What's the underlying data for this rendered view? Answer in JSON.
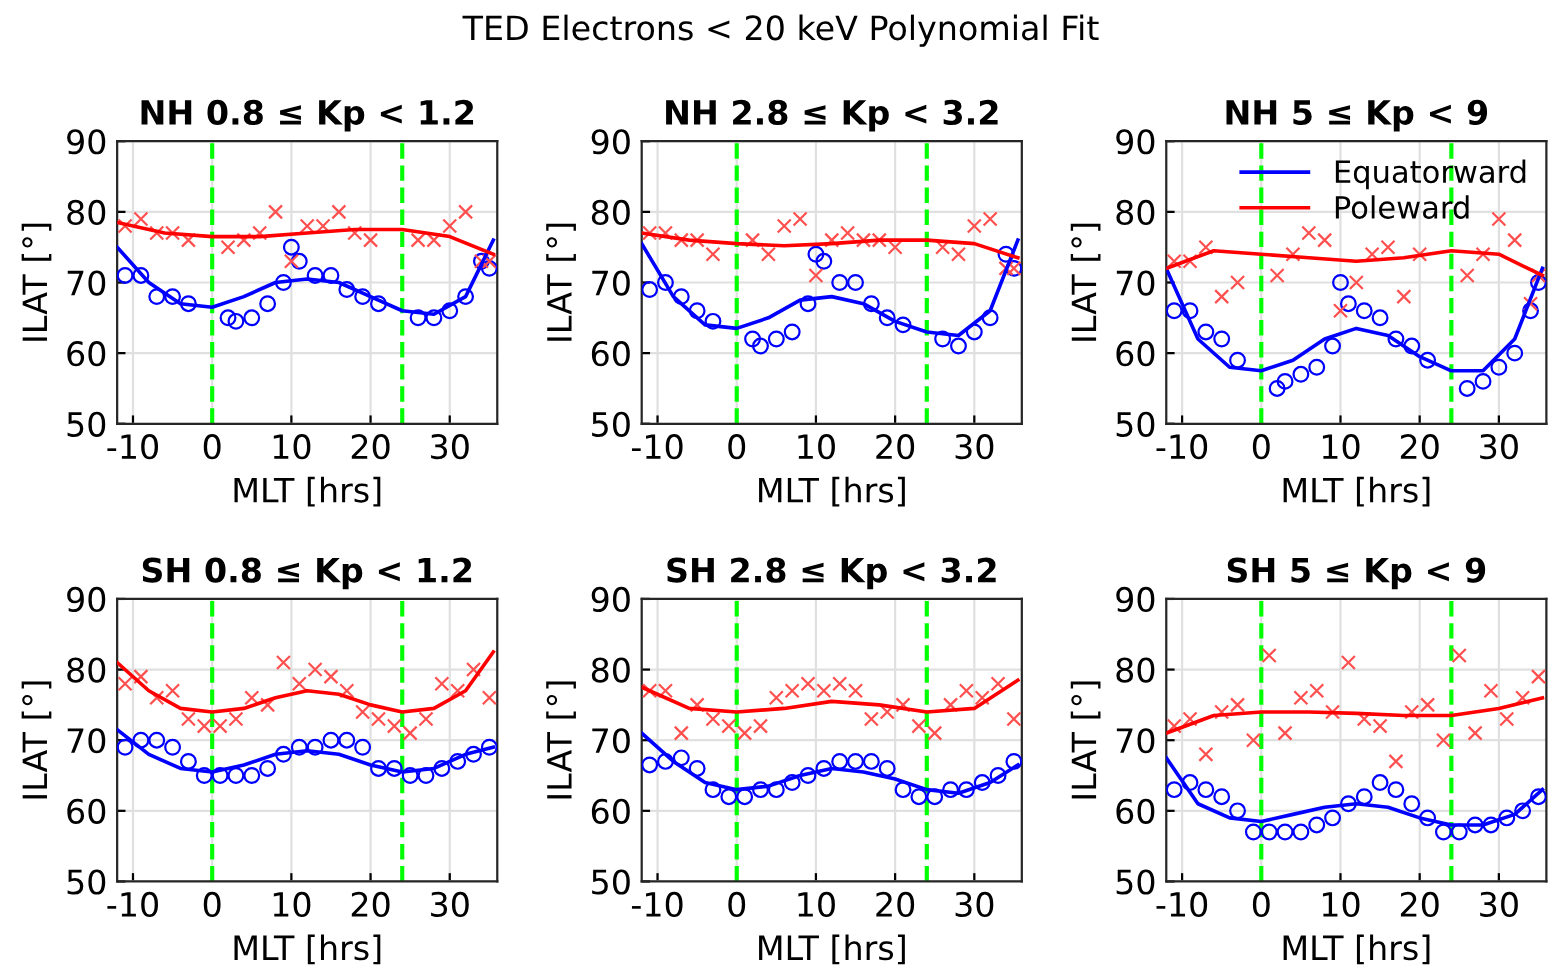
{
  "chart_data": [
    {
      "type": "line",
      "title": "NH 0.8 ≤ Kp < 1.2",
      "xlabel": "MLT [hrs]",
      "ylabel": "ILAT [°]",
      "annotations": [
        "TED Electrons < 20 keV Polynomial Fit"
      ],
      "xlim": [
        -12,
        36
      ],
      "xticks": [
        -10,
        0,
        10,
        20,
        30
      ],
      "ylim": [
        50,
        90
      ],
      "yticks": [
        50,
        60,
        70,
        80,
        90
      ],
      "grid": true,
      "ref_lines": [
        {
          "axis": "x",
          "value": 0,
          "color": "#00ff00",
          "line_style": "dashed"
        },
        {
          "axis": "x",
          "value": 24,
          "color": "#00ff00",
          "line_style": "dashed"
        }
      ],
      "series": [
        {
          "type": "scatter",
          "marker": "circle",
          "color": "#0000ff",
          "x": [
            -11,
            -9,
            -7,
            -5,
            -3,
            2,
            3,
            5,
            7,
            9,
            10,
            11,
            13,
            15,
            17,
            19,
            21,
            26,
            28,
            30,
            32,
            34,
            35
          ],
          "values": [
            71,
            71,
            68,
            68,
            67,
            65,
            64.5,
            65,
            67,
            70,
            75,
            73,
            71,
            71,
            69,
            68,
            67,
            65,
            65,
            66,
            68,
            73,
            72
          ]
        },
        {
          "type": "scatter",
          "marker": "cross",
          "color": "#ff5050",
          "x": [
            -11,
            -9,
            -7,
            -5,
            -3,
            2,
            4,
            6,
            8,
            10,
            12,
            14,
            16,
            18,
            20,
            26,
            28,
            30,
            32,
            34,
            35
          ],
          "values": [
            78,
            79,
            77,
            77,
            76,
            75,
            76,
            77,
            80,
            73,
            78,
            78,
            80,
            77,
            76,
            76,
            76,
            78,
            80,
            73,
            73
          ]
        },
        {
          "type": "line",
          "color": "#0000ff",
          "x": [
            -12,
            -8,
            -4,
            0,
            4,
            8,
            12,
            16,
            20,
            24,
            28,
            32,
            35.5
          ],
          "values": [
            75,
            70,
            67,
            66.5,
            68,
            70,
            70.5,
            70,
            68,
            66,
            65.5,
            68,
            76
          ]
        },
        {
          "type": "line",
          "color": "#ff0000",
          "x": [
            -12,
            -6,
            0,
            6,
            12,
            18,
            24,
            30,
            35.5
          ],
          "values": [
            78.5,
            77,
            76.5,
            76.5,
            77,
            77.5,
            77.5,
            76.5,
            74
          ]
        }
      ]
    },
    {
      "type": "line",
      "title": "NH 2.8 ≤ Kp < 3.2",
      "xlabel": "MLT [hrs]",
      "ylabel": "ILAT [°]",
      "xlim": [
        -12,
        36
      ],
      "xticks": [
        -10,
        0,
        10,
        20,
        30
      ],
      "ylim": [
        50,
        90
      ],
      "yticks": [
        50,
        60,
        70,
        80,
        90
      ],
      "grid": true,
      "ref_lines": [
        {
          "axis": "x",
          "value": 0,
          "color": "#00ff00",
          "line_style": "dashed"
        },
        {
          "axis": "x",
          "value": 24,
          "color": "#00ff00",
          "line_style": "dashed"
        }
      ],
      "series": [
        {
          "type": "scatter",
          "marker": "circle",
          "color": "#0000ff",
          "x": [
            -11,
            -9,
            -7,
            -5,
            -3,
            2,
            3,
            5,
            7,
            9,
            10,
            11,
            13,
            15,
            17,
            19,
            21,
            26,
            28,
            30,
            32,
            34,
            35
          ],
          "values": [
            69,
            70,
            68,
            66,
            64.5,
            62,
            61,
            62,
            63,
            67,
            74,
            73,
            70,
            70,
            67,
            65,
            64,
            62,
            61,
            63,
            65,
            74,
            72
          ]
        },
        {
          "type": "scatter",
          "marker": "cross",
          "color": "#ff5050",
          "x": [
            -11,
            -9,
            -7,
            -5,
            -3,
            2,
            4,
            6,
            8,
            10,
            12,
            14,
            16,
            18,
            20,
            26,
            28,
            30,
            32,
            34,
            35
          ],
          "values": [
            77,
            77,
            76,
            76,
            74,
            76,
            74,
            78,
            79,
            71,
            76,
            77,
            76,
            76,
            75,
            75,
            74,
            78,
            79,
            72,
            72
          ]
        },
        {
          "type": "line",
          "color": "#0000ff",
          "x": [
            -12,
            -8,
            -4,
            0,
            4,
            8,
            12,
            16,
            20,
            24,
            28,
            32,
            35.5
          ],
          "values": [
            75.5,
            68,
            64,
            63.5,
            65,
            67.5,
            68,
            67,
            64.5,
            63,
            62.5,
            66,
            76
          ]
        },
        {
          "type": "line",
          "color": "#ff0000",
          "x": [
            -12,
            -6,
            0,
            6,
            12,
            18,
            24,
            30,
            35.5
          ],
          "values": [
            77,
            76,
            75.5,
            75.2,
            75.5,
            76,
            76,
            75.5,
            73.5
          ]
        }
      ]
    },
    {
      "type": "line",
      "title": "NH 5 ≤ Kp < 9",
      "xlabel": "MLT [hrs]",
      "ylabel": "ILAT [°]",
      "xlim": [
        -12,
        36
      ],
      "xticks": [
        -10,
        0,
        10,
        20,
        30
      ],
      "ylim": [
        50,
        90
      ],
      "yticks": [
        50,
        60,
        70,
        80,
        90
      ],
      "grid": true,
      "legend": "top right",
      "ref_lines": [
        {
          "axis": "x",
          "value": 0,
          "color": "#00ff00",
          "line_style": "dashed"
        },
        {
          "axis": "x",
          "value": 24,
          "color": "#00ff00",
          "line_style": "dashed"
        }
      ],
      "series": [
        {
          "type": "scatter",
          "marker": "circle",
          "color": "#0000ff",
          "x": [
            -11,
            -9,
            -7,
            -5,
            -3,
            2,
            3,
            5,
            7,
            9,
            10,
            11,
            13,
            15,
            17,
            19,
            21,
            26,
            28,
            30,
            32,
            34,
            35
          ],
          "values": [
            66,
            66,
            63,
            62,
            59,
            55,
            56,
            57,
            58,
            61,
            70,
            67,
            66,
            65,
            62,
            61,
            59,
            55,
            56,
            58,
            60,
            66,
            70
          ]
        },
        {
          "type": "scatter",
          "marker": "cross",
          "color": "#ff5050",
          "x": [
            -11,
            -9,
            -7,
            -5,
            -3,
            2,
            4,
            6,
            8,
            10,
            12,
            14,
            16,
            18,
            20,
            26,
            28,
            30,
            32,
            34,
            35
          ],
          "values": [
            73,
            73,
            75,
            68,
            70,
            71,
            74,
            77,
            76,
            66,
            70,
            74,
            75,
            68,
            74,
            71,
            74,
            79,
            76,
            67,
            71
          ]
        },
        {
          "type": "line",
          "name": "Equatorward",
          "color": "#0000ff",
          "x": [
            -12,
            -8,
            -4,
            0,
            4,
            8,
            12,
            16,
            20,
            24,
            28,
            32,
            35.5
          ],
          "values": [
            72,
            62,
            58,
            57.5,
            59,
            62,
            63.5,
            62.5,
            59.5,
            57.5,
            57.5,
            62,
            72
          ]
        },
        {
          "type": "line",
          "name": "Poleward",
          "color": "#ff0000",
          "x": [
            -12,
            -6,
            0,
            6,
            12,
            18,
            24,
            30,
            35.5
          ],
          "values": [
            72,
            74.5,
            74,
            73.5,
            73,
            73.5,
            74.5,
            74,
            71
          ]
        }
      ]
    },
    {
      "type": "line",
      "title": "SH 0.8 ≤ Kp < 1.2",
      "xlabel": "MLT [hrs]",
      "ylabel": "ILAT [°]",
      "xlim": [
        -12,
        36
      ],
      "xticks": [
        -10,
        0,
        10,
        20,
        30
      ],
      "ylim": [
        50,
        90
      ],
      "yticks": [
        50,
        60,
        70,
        80,
        90
      ],
      "grid": true,
      "ref_lines": [
        {
          "axis": "x",
          "value": 0,
          "color": "#00ff00",
          "line_style": "dashed"
        },
        {
          "axis": "x",
          "value": 24,
          "color": "#00ff00",
          "line_style": "dashed"
        }
      ],
      "series": [
        {
          "type": "scatter",
          "marker": "circle",
          "color": "#0000ff",
          "x": [
            -11,
            -9,
            -7,
            -5,
            -3,
            -1,
            1,
            3,
            5,
            7,
            9,
            11,
            13,
            15,
            17,
            19,
            21,
            23,
            25,
            27,
            29,
            31,
            33,
            35
          ],
          "values": [
            69,
            70,
            70,
            69,
            67,
            65,
            65,
            65,
            65,
            66,
            68,
            69,
            69,
            70,
            70,
            69,
            66,
            66,
            65,
            65,
            66,
            67,
            68,
            69
          ]
        },
        {
          "type": "scatter",
          "marker": "cross",
          "color": "#ff5050",
          "x": [
            -11,
            -9,
            -7,
            -5,
            -3,
            -1,
            1,
            3,
            5,
            7,
            9,
            11,
            13,
            15,
            17,
            19,
            21,
            23,
            25,
            27,
            29,
            31,
            33,
            35
          ],
          "values": [
            78,
            79,
            76,
            77,
            73,
            72,
            72,
            73,
            76,
            75,
            81,
            78,
            80,
            79,
            77,
            74,
            73,
            72,
            71,
            73,
            78,
            77,
            80,
            76
          ]
        },
        {
          "type": "line",
          "color": "#0000ff",
          "x": [
            -12,
            -8,
            -4,
            0,
            4,
            8,
            12,
            16,
            20,
            24,
            28,
            32,
            35.5
          ],
          "values": [
            71.5,
            68,
            66,
            65.5,
            66.5,
            68,
            68.5,
            68,
            66.5,
            65.5,
            66,
            68,
            69
          ]
        },
        {
          "type": "line",
          "color": "#ff0000",
          "x": [
            -12,
            -8,
            -4,
            0,
            4,
            8,
            12,
            16,
            20,
            24,
            28,
            32,
            35.5
          ],
          "values": [
            81,
            77,
            74.5,
            74,
            74.5,
            76,
            77,
            76.5,
            75,
            74,
            74.5,
            77,
            82.5
          ]
        }
      ]
    },
    {
      "type": "line",
      "title": "SH 2.8 ≤ Kp < 3.2",
      "xlabel": "MLT [hrs]",
      "ylabel": "ILAT [°]",
      "xlim": [
        -12,
        36
      ],
      "xticks": [
        -10,
        0,
        10,
        20,
        30
      ],
      "ylim": [
        50,
        90
      ],
      "yticks": [
        50,
        60,
        70,
        80,
        90
      ],
      "grid": true,
      "ref_lines": [
        {
          "axis": "x",
          "value": 0,
          "color": "#00ff00",
          "line_style": "dashed"
        },
        {
          "axis": "x",
          "value": 24,
          "color": "#00ff00",
          "line_style": "dashed"
        }
      ],
      "series": [
        {
          "type": "scatter",
          "marker": "circle",
          "color": "#0000ff",
          "x": [
            -11,
            -9,
            -7,
            -5,
            -3,
            -1,
            1,
            3,
            5,
            7,
            9,
            11,
            13,
            15,
            17,
            19,
            21,
            23,
            25,
            27,
            29,
            31,
            33,
            35
          ],
          "values": [
            66.5,
            67,
            67.5,
            66,
            63,
            62,
            62,
            63,
            63,
            64,
            65,
            66,
            67,
            67,
            67,
            66,
            63,
            62,
            62,
            63,
            63,
            64,
            65,
            67
          ]
        },
        {
          "type": "scatter",
          "marker": "cross",
          "color": "#ff5050",
          "x": [
            -11,
            -9,
            -7,
            -5,
            -3,
            -1,
            1,
            3,
            5,
            7,
            9,
            11,
            13,
            15,
            17,
            19,
            21,
            23,
            25,
            27,
            29,
            31,
            33,
            35
          ],
          "values": [
            77,
            77,
            71,
            75,
            73,
            72,
            71,
            72,
            76,
            77,
            78,
            77,
            78,
            77,
            73,
            74,
            75,
            72,
            71,
            75,
            77,
            76,
            78,
            73
          ]
        },
        {
          "type": "line",
          "color": "#0000ff",
          "x": [
            -12,
            -8,
            -4,
            0,
            4,
            8,
            12,
            16,
            20,
            24,
            28,
            32,
            35.5
          ],
          "values": [
            71,
            67,
            64,
            63,
            63.5,
            65,
            66,
            65.5,
            64.5,
            63,
            62.5,
            64,
            66.5
          ]
        },
        {
          "type": "line",
          "color": "#ff0000",
          "x": [
            -12,
            -6,
            0,
            6,
            12,
            18,
            24,
            30,
            35.5
          ],
          "values": [
            77.5,
            74.5,
            74,
            74.5,
            75.5,
            75,
            74,
            74.5,
            78.5
          ]
        }
      ]
    },
    {
      "type": "line",
      "title": "SH 5 ≤ Kp < 9",
      "xlabel": "MLT [hrs]",
      "ylabel": "ILAT [°]",
      "xlim": [
        -12,
        36
      ],
      "xticks": [
        -10,
        0,
        10,
        20,
        30
      ],
      "ylim": [
        50,
        90
      ],
      "yticks": [
        50,
        60,
        70,
        80,
        90
      ],
      "grid": true,
      "ref_lines": [
        {
          "axis": "x",
          "value": 0,
          "color": "#00ff00",
          "line_style": "dashed"
        },
        {
          "axis": "x",
          "value": 24,
          "color": "#00ff00",
          "line_style": "dashed"
        }
      ],
      "series": [
        {
          "type": "scatter",
          "marker": "circle",
          "color": "#0000ff",
          "x": [
            -11,
            -9,
            -7,
            -5,
            -3,
            -1,
            1,
            3,
            5,
            7,
            9,
            11,
            13,
            15,
            17,
            19,
            21,
            23,
            25,
            27,
            29,
            31,
            33,
            35
          ],
          "values": [
            63,
            64,
            63,
            62,
            60,
            57,
            57,
            57,
            57,
            58,
            59,
            61,
            62,
            64,
            63,
            61,
            59,
            57,
            57,
            58,
            58,
            59,
            60,
            62
          ]
        },
        {
          "type": "scatter",
          "marker": "cross",
          "color": "#ff5050",
          "x": [
            -11,
            -9,
            -7,
            -5,
            -3,
            -1,
            1,
            3,
            5,
            7,
            9,
            11,
            13,
            15,
            17,
            19,
            21,
            23,
            25,
            27,
            29,
            31,
            33,
            35
          ],
          "values": [
            72,
            73,
            68,
            74,
            75,
            70,
            82,
            71,
            76,
            77,
            74,
            81,
            73,
            72,
            67,
            74,
            75,
            70,
            82,
            71,
            77,
            73,
            76,
            79
          ]
        },
        {
          "type": "line",
          "color": "#0000ff",
          "x": [
            -12,
            -8,
            -4,
            0,
            4,
            8,
            12,
            16,
            20,
            24,
            28,
            32,
            35.5
          ],
          "values": [
            67.5,
            61,
            59,
            58.5,
            59.5,
            60.5,
            61,
            60.5,
            59,
            58,
            58,
            59.5,
            63
          ]
        },
        {
          "type": "line",
          "color": "#ff0000",
          "x": [
            -12,
            -6,
            0,
            6,
            12,
            18,
            24,
            30,
            35.5
          ],
          "values": [
            71,
            73.5,
            74,
            74,
            73.8,
            73.5,
            73.5,
            74.5,
            76
          ]
        }
      ]
    }
  ]
}
